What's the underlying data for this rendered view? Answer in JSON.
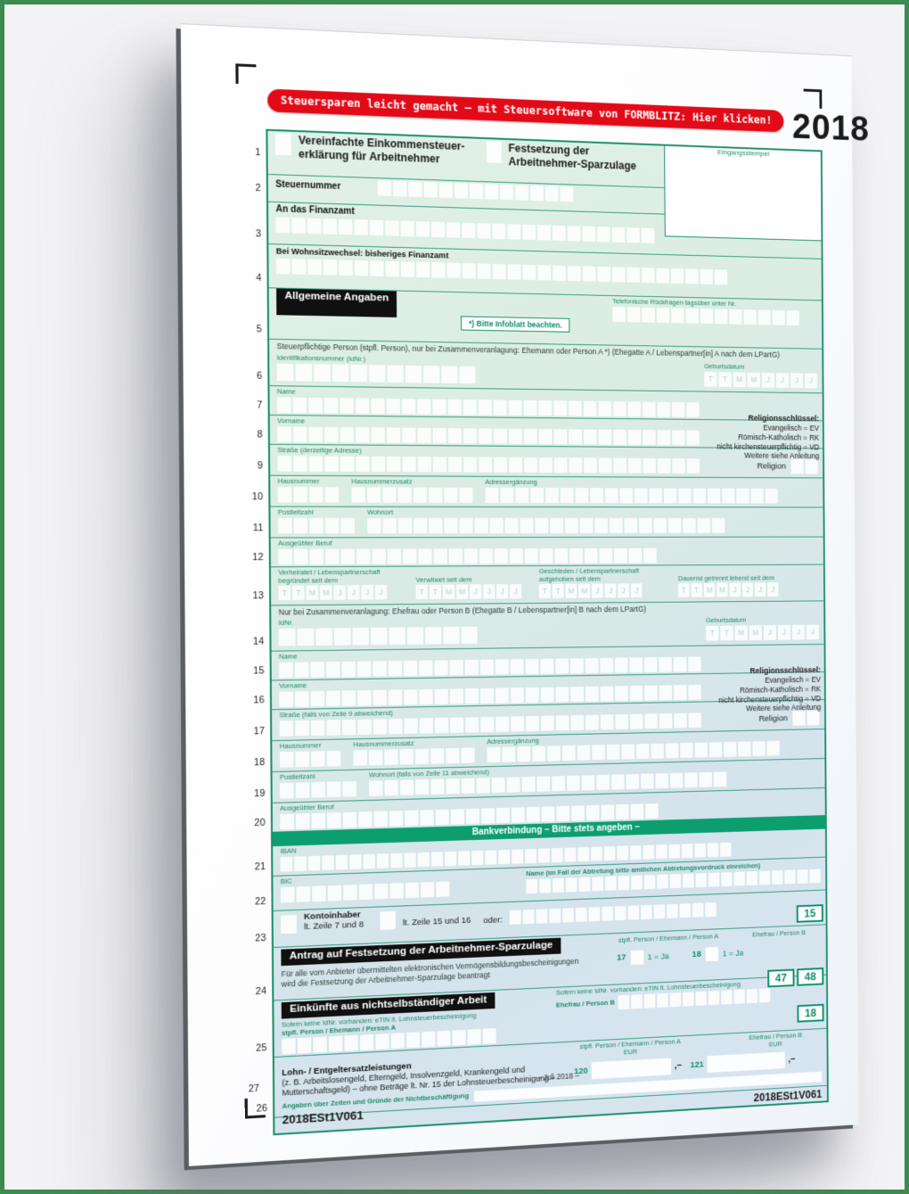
{
  "banner": "Steuersparen leicht gemacht – mit Steuersoftware von FORMBLITZ: Hier klicken!",
  "year": "2018",
  "masks": {
    "date": "TTMMJJJJ"
  },
  "lines": [
    "1",
    "2",
    "3",
    "4",
    "5",
    "6",
    "7",
    "8",
    "9",
    "10",
    "11",
    "12",
    "13",
    "14",
    "15",
    "16",
    "17",
    "18",
    "19",
    "20",
    "21",
    "22",
    "23",
    "24",
    "25",
    "26",
    "27"
  ],
  "header": {
    "title_a1": "Vereinfachte Einkommensteuer-",
    "title_a2": "erklärung für Arbeitnehmer",
    "title_b1": "Festsetzung der",
    "title_b2": "Arbeitnehmer-Sparzulage",
    "stamp": "Eingangsstempel",
    "steuernummer": "Steuernummer",
    "finanzamt": "An das Finanzamt",
    "wohnsitzwechsel": "Bei Wohnsitzwechsel: bisheriges Finanzamt"
  },
  "sections": {
    "allgemein": "Allgemeine Angaben",
    "bank": "Bankverbindung – Bitte stets angeben –",
    "antrag": "Antrag auf Festsetzung der Arbeitnehmer-Sparzulage",
    "einkuenfte": "Einkünfte aus nichtselbständiger Arbeit"
  },
  "allgemein": {
    "infoblatt": "*) Bitte Infoblatt beachten.",
    "telefon": "Telefonische Rückfragen tagsüber unter Nr.",
    "person_a_header": "Steuerpflichtige Person (stpfl. Person), nur bei Zusammenveranlagung: Ehemann oder Person A *) (Ehegatte A / Lebenspartner[in] A nach dem LPartG)",
    "person_b_header": "Nur bei Zusammenveranlagung: Ehefrau oder Person B (Ehegatte B / Lebenspartner[in] B nach dem LPartG)",
    "idnr_long": "Identifikationsnummer (IdNr.)",
    "idnr_short": "IdNr.",
    "geburtsdatum": "Geburtsdatum",
    "name": "Name",
    "vorname": "Vorname",
    "strasse_a": "Straße (derzeitige Adresse)",
    "strasse_b": "Straße (falls von Zeile 9 abweichend)",
    "religion": "Religion",
    "hausnummer": "Hausnummer",
    "hausnummerzusatz": "Hausnummerzusatz",
    "adressergaenzung": "Adressergänzung",
    "plz": "Postleitzahl",
    "wohnort_a": "Wohnort",
    "wohnort_b": "Wohnort (falls von Zeile 11 abweichend)",
    "beruf": "Ausgeübter Beruf",
    "religionsschluessel": {
      "title": "Religionsschlüssel:",
      "ev": "Evangelisch = EV",
      "rk": "Römisch-Katholisch = RK",
      "vd": "nicht kirchensteuerpflichtig = VD",
      "more": "Weitere siehe Anleitung"
    },
    "familienstand": {
      "verheiratet": "Verheiratet / Lebenspartnerschaft begründet seit dem",
      "verwitwet": "Verwitwet seit dem",
      "geschieden": "Geschieden / Lebenspartnerschaft aufgehoben seit dem",
      "getrennt": "Dauernd getrennt lebend seit dem"
    }
  },
  "bank": {
    "iban": "IBAN",
    "bic": "BIC",
    "abtretung": "Name (im Fall der Abtretung bitte amtlichen Abtretungsvordruck einreichen)",
    "kontoinhaber": "Kontoinhaber",
    "zeile_7_8": "lt. Zeile 7 und 8",
    "zeile_15_16": "lt. Zeile 15 und 16",
    "oder": "oder:",
    "ref15": "15"
  },
  "antrag": {
    "text1": "Für alle vom Anbieter übermittelten elektronischen Vermögensbildungsbescheinigungen",
    "text2": "wird die Festsetzung der Arbeitnehmer-Sparzulage beantragt",
    "col_a": "stpfl. Person / Ehemann / Person A",
    "col_b": "Ehefrau / Person B",
    "n17": "17",
    "n18": "18",
    "ja": "1 = Ja",
    "ref47": "47",
    "ref48": "48"
  },
  "einkuenfte": {
    "etin": "Sofern keine IdNr. vorhanden: eTIN lt. Lohnsteuerbescheinigung",
    "person_a": "stpfl. Person / Ehemann / Person A",
    "person_b": "Ehefrau / Person B",
    "eur": "EUR",
    "ref18": "18"
  },
  "lohn": {
    "title": "Lohn- / Entgeltersatzleistungen",
    "desc1": "(z. B. Arbeitslosengeld, Elterngeld, Insolvenzgeld, Krankengeld und",
    "desc2": "Mutterschaftsgeld) – ohne Beträge lt. Nr. 15 der Lohnsteuerbescheinigung –",
    "n120": "120",
    "n121": "121",
    "cents": ",–",
    "zeiten": "Angaben über Zeiten und Gründe der Nichtbeschäftigung"
  },
  "footer": {
    "code": "2018ESt1V061",
    "issue": "– Juli 2018 –"
  },
  "colors": {
    "accent_green": "#0c9e6e",
    "form_border": "#1d8f6d",
    "banner_red": "#e30a17",
    "frame_green": "#3c8c50",
    "bar_black": "#111111"
  }
}
